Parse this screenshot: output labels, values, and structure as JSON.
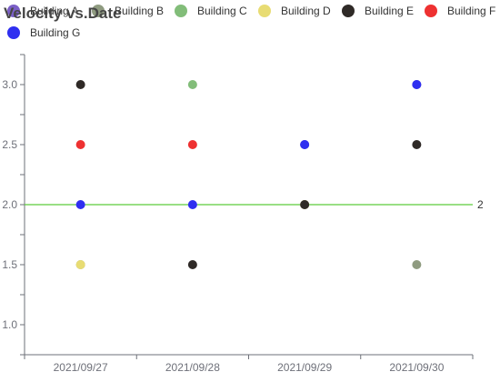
{
  "chart_data": {
    "type": "scatter",
    "title": "Velocity vs.Date",
    "categories": [
      "2021/09/27",
      "2021/09/28",
      "2021/09/29",
      "2021/09/30"
    ],
    "ylim": [
      0.75,
      3.25
    ],
    "yticks": [
      "1.0",
      "1.5",
      "2.0",
      "2.5",
      "3.0"
    ],
    "series": [
      {
        "name": "Building A",
        "color": "#7b5fc7",
        "values": [
          null,
          null,
          2.5,
          3.0
        ]
      },
      {
        "name": "Building B",
        "color": "#8f9b80",
        "values": [
          1.5,
          null,
          2.0,
          1.5
        ]
      },
      {
        "name": "Building C",
        "color": "#82bd79",
        "values": [
          null,
          3.0,
          null,
          null
        ]
      },
      {
        "name": "Building D",
        "color": "#e8dc73",
        "values": [
          1.5,
          null,
          2.0,
          null
        ]
      },
      {
        "name": "Building E",
        "color": "#2f2a27",
        "values": [
          3.0,
          1.5,
          2.0,
          2.5
        ]
      },
      {
        "name": "Building F",
        "color": "#ee3131",
        "values": [
          2.5,
          2.5,
          null,
          null
        ]
      },
      {
        "name": "Building G",
        "color": "#2f2ff0",
        "values": [
          2.0,
          2.0,
          2.5,
          3.0
        ]
      }
    ],
    "reference_line": {
      "value": 2,
      "label": "2",
      "color": "#5ccc3a"
    },
    "grid": false,
    "legend_position": "top"
  }
}
